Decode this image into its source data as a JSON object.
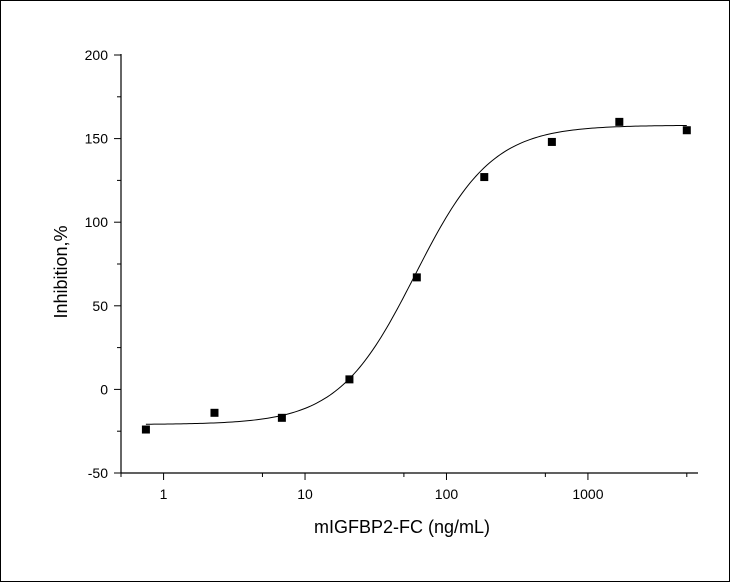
{
  "chart_data": {
    "type": "scatter",
    "xlabel": "mIGFBP2-FC (ng/mL)",
    "ylabel": "Inhibition,%",
    "xscale": "log",
    "xlim": [
      0.5,
      6000
    ],
    "ylim": [
      -50,
      200
    ],
    "xticks": [
      1,
      10,
      100,
      1000
    ],
    "xtick_labels": [
      "1",
      "10",
      "100",
      "1000"
    ],
    "yticks": [
      -50,
      0,
      50,
      100,
      150,
      200
    ],
    "ytick_labels": [
      "-50",
      "0",
      "50",
      "100",
      "150",
      "200"
    ],
    "grid": false,
    "legend": "none",
    "marker_color": "#000000",
    "series": [
      {
        "x": [
          0.75,
          2.29,
          6.86,
          20.6,
          61.7,
          185,
          556,
          1667,
          5000
        ],
        "y": [
          -24,
          -14,
          -17,
          6,
          67,
          127,
          148,
          160,
          155
        ]
      }
    ],
    "fit_curve": {
      "model": "4PL",
      "bottom": -21,
      "top": 158,
      "ec50": 60,
      "hill": 1.6
    }
  }
}
